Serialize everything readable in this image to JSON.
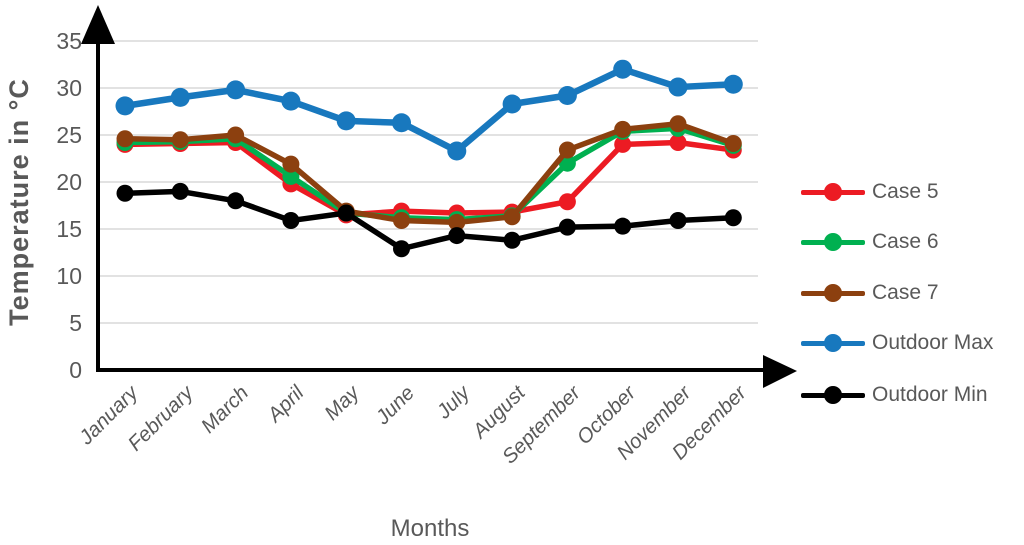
{
  "chart_data": {
    "type": "line",
    "title": "",
    "xlabel": "Months",
    "ylabel": "Temperature in °C",
    "ylim": [
      0,
      35
    ],
    "ytick_step": 5,
    "grid": true,
    "legend_position": "right",
    "categories": [
      "January",
      "February",
      "March",
      "April",
      "May",
      "June",
      "July",
      "August",
      "September",
      "October",
      "November",
      "December"
    ],
    "series": [
      {
        "name": "Case 5",
        "color": "#EC1B23",
        "values": [
          24.0,
          24.1,
          24.2,
          19.8,
          16.5,
          16.9,
          16.7,
          16.8,
          17.9,
          24.0,
          24.2,
          23.4
        ]
      },
      {
        "name": "Case 6",
        "color": "#00B050",
        "values": [
          24.2,
          24.3,
          24.6,
          20.6,
          16.7,
          16.2,
          16.0,
          16.4,
          22.0,
          25.4,
          25.7,
          23.9
        ]
      },
      {
        "name": "Case 7",
        "color": "#8C400F",
        "values": [
          24.6,
          24.5,
          25.0,
          21.9,
          16.9,
          15.9,
          15.7,
          16.3,
          23.4,
          25.6,
          26.2,
          24.1
        ]
      },
      {
        "name": "Outdoor Max",
        "color": "#1878BE",
        "values": [
          28.1,
          29.0,
          29.8,
          28.6,
          26.5,
          26.3,
          23.3,
          28.3,
          29.2,
          32.0,
          30.1,
          30.4
        ]
      },
      {
        "name": "Outdoor Min",
        "color": "#000000",
        "values": [
          18.8,
          19.0,
          18.0,
          15.9,
          16.7,
          12.9,
          14.3,
          13.8,
          15.2,
          15.3,
          15.9,
          16.2
        ]
      }
    ]
  },
  "styles": {
    "axis_text_color": "#595959",
    "gridline_color": "#D9D9D9",
    "axis_line_color": "#000000",
    "background": "#FFFFFF"
  }
}
